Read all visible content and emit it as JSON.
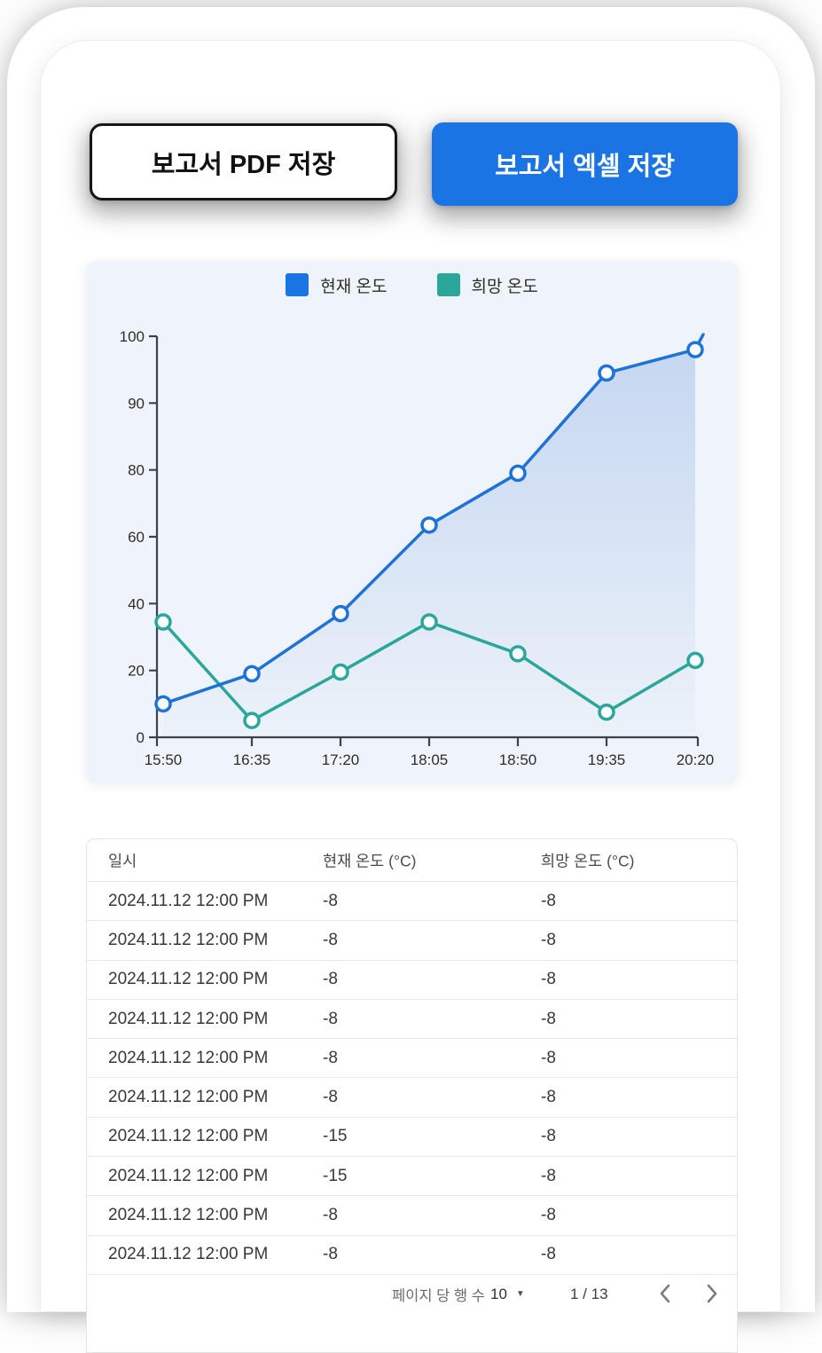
{
  "buttons": {
    "save_pdf": "보고서 PDF 저장",
    "save_excel": "보고서 엑셀 저장"
  },
  "colors": {
    "primary_blue": "#1b74e4",
    "line_blue": "#1f72d6",
    "line_teal": "#2aa79a",
    "chart_bg": "#eff4fa"
  },
  "chart_data": {
    "type": "line",
    "title": "",
    "legend_position": "top",
    "grid": false,
    "categories": [
      "15:50",
      "16:35",
      "17:20",
      "18:05",
      "18:50",
      "19:35",
      "20:20"
    ],
    "y_ticks": [
      0,
      20,
      40,
      60,
      80,
      90,
      100
    ],
    "ylim": [
      0,
      100
    ],
    "legend": [
      {
        "label": "현재 온도",
        "color": "#1b74e4"
      },
      {
        "label": "희망 온도",
        "color": "#2aa79a"
      }
    ],
    "series": [
      {
        "name": "현재 온도",
        "color": "#1f72d6",
        "values": [
          10,
          19,
          37,
          63.5,
          79,
          94.5,
          98
        ],
        "area_fill": true,
        "overshoot": true
      },
      {
        "name": "희망 온도",
        "color": "#2aa79a",
        "values": [
          34.5,
          5,
          19.5,
          34.5,
          25,
          7.5,
          23
        ],
        "area_fill": false,
        "overshoot": false
      }
    ]
  },
  "table": {
    "columns": [
      "일시",
      "현재 온도 (°C)",
      "희망 온도 (°C)"
    ],
    "rows": [
      [
        "2024.11.12 12:00 PM",
        "-8",
        "-8"
      ],
      [
        "2024.11.12 12:00 PM",
        "-8",
        "-8"
      ],
      [
        "2024.11.12 12:00 PM",
        "-8",
        "-8"
      ],
      [
        "2024.11.12 12:00 PM",
        "-8",
        "-8"
      ],
      [
        "2024.11.12 12:00 PM",
        "-8",
        "-8"
      ],
      [
        "2024.11.12 12:00 PM",
        "-8",
        "-8"
      ],
      [
        "2024.11.12 12:00 PM",
        "-15",
        "-8"
      ],
      [
        "2024.11.12 12:00 PM",
        "-15",
        "-8"
      ],
      [
        "2024.11.12 12:00 PM",
        "-8",
        "-8"
      ],
      [
        "2024.11.12 12:00 PM",
        "-8",
        "-8"
      ]
    ]
  },
  "pagination": {
    "rows_per_page_label": "페이지 당 행 수",
    "rows_per_page_value": "10",
    "page_indicator": "1 / 13",
    "caret_icon": "▼"
  }
}
